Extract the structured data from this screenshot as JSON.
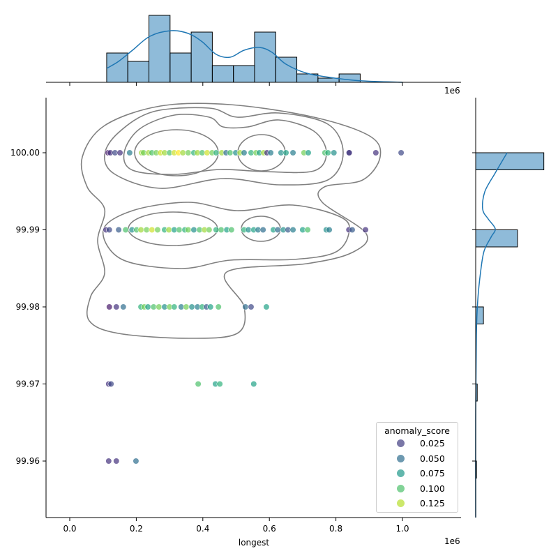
{
  "chart_data": {
    "type": "scatter",
    "xlabel": "longest",
    "ylabel": "",
    "x_offset_label": "1e6",
    "xlim": [
      -0.07,
      1.17
    ],
    "ylim": [
      99.953,
      100.007
    ],
    "x_ticks": [
      "0.0",
      "0.2",
      "0.4",
      "0.6",
      "0.8",
      "1.0"
    ],
    "x_tick_values": [
      0,
      0.2,
      0.4,
      0.6,
      0.8,
      1.0
    ],
    "y_ticks": [
      "99.96",
      "99.97",
      "99.98",
      "99.99",
      "100.00"
    ],
    "y_tick_values": [
      99.96,
      99.97,
      99.98,
      99.99,
      100.0
    ],
    "hue": "anomaly_score",
    "colormap": "viridis",
    "hue_range": [
      0.0,
      0.14
    ],
    "legend": {
      "title": "anomaly_score",
      "placement": "lower-right",
      "entries": [
        "0.025",
        "0.050",
        "0.075",
        "0.100",
        "0.125"
      ],
      "values": [
        0.025,
        0.05,
        0.075,
        0.1,
        0.125
      ]
    },
    "kde_contours": true,
    "points": {
      "100.00": [
        [
          0.115,
          0.01
        ],
        [
          0.122,
          0.02
        ],
        [
          0.136,
          0.03
        ],
        [
          0.151,
          0.02
        ],
        [
          0.18,
          0.06
        ],
        [
          0.216,
          0.12
        ],
        [
          0.222,
          0.11
        ],
        [
          0.237,
          0.12
        ],
        [
          0.247,
          0.1
        ],
        [
          0.26,
          0.11
        ],
        [
          0.273,
          0.13
        ],
        [
          0.285,
          0.12
        ],
        [
          0.3,
          0.1
        ],
        [
          0.314,
          0.13
        ],
        [
          0.327,
          0.14
        ],
        [
          0.34,
          0.12
        ],
        [
          0.356,
          0.11
        ],
        [
          0.373,
          0.09
        ],
        [
          0.384,
          0.12
        ],
        [
          0.398,
          0.1
        ],
        [
          0.413,
          0.13
        ],
        [
          0.428,
          0.11
        ],
        [
          0.44,
          0.09
        ],
        [
          0.457,
          0.12
        ],
        [
          0.47,
          0.05
        ],
        [
          0.482,
          0.1
        ],
        [
          0.499,
          0.07
        ],
        [
          0.512,
          0.12
        ],
        [
          0.524,
          0.06
        ],
        [
          0.545,
          0.09
        ],
        [
          0.56,
          0.11
        ],
        [
          0.57,
          0.08
        ],
        [
          0.583,
          0.12
        ],
        [
          0.593,
          0.02
        ],
        [
          0.604,
          0.06
        ],
        [
          0.635,
          0.07
        ],
        [
          0.65,
          0.08
        ],
        [
          0.671,
          0.06
        ],
        [
          0.704,
          0.11
        ],
        [
          0.717,
          0.08
        ],
        [
          0.767,
          0.1
        ],
        [
          0.776,
          0.09
        ],
        [
          0.794,
          0.07
        ],
        [
          0.839,
          0.03
        ],
        [
          0.84,
          0.02
        ],
        [
          0.92,
          0.02
        ],
        [
          0.996,
          0.03
        ]
      ],
      "99.99": [
        [
          0.109,
          0.02
        ],
        [
          0.119,
          0.03
        ],
        [
          0.147,
          0.04
        ],
        [
          0.168,
          0.1
        ],
        [
          0.187,
          0.07
        ],
        [
          0.201,
          0.1
        ],
        [
          0.214,
          0.12
        ],
        [
          0.231,
          0.11
        ],
        [
          0.247,
          0.13
        ],
        [
          0.264,
          0.11
        ],
        [
          0.285,
          0.09
        ],
        [
          0.298,
          0.12
        ],
        [
          0.314,
          0.08
        ],
        [
          0.329,
          0.1
        ],
        [
          0.346,
          0.09
        ],
        [
          0.356,
          0.11
        ],
        [
          0.373,
          0.07
        ],
        [
          0.39,
          0.1
        ],
        [
          0.405,
          0.12
        ],
        [
          0.419,
          0.11
        ],
        [
          0.44,
          0.09
        ],
        [
          0.455,
          0.1
        ],
        [
          0.472,
          0.08
        ],
        [
          0.486,
          0.1
        ],
        [
          0.524,
          0.09
        ],
        [
          0.537,
          0.07
        ],
        [
          0.553,
          0.08
        ],
        [
          0.566,
          0.06
        ],
        [
          0.581,
          0.05
        ],
        [
          0.612,
          0.08
        ],
        [
          0.625,
          0.05
        ],
        [
          0.642,
          0.07
        ],
        [
          0.656,
          0.04
        ],
        [
          0.671,
          0.06
        ],
        [
          0.7,
          0.08
        ],
        [
          0.715,
          0.1
        ],
        [
          0.771,
          0.07
        ],
        [
          0.78,
          0.06
        ],
        [
          0.839,
          0.02
        ],
        [
          0.849,
          0.04
        ],
        [
          0.889,
          0.02
        ]
      ],
      "99.98": [
        [
          0.119,
          0.01
        ],
        [
          0.14,
          0.02
        ],
        [
          0.161,
          0.05
        ],
        [
          0.214,
          0.09
        ],
        [
          0.224,
          0.11
        ],
        [
          0.235,
          0.08
        ],
        [
          0.252,
          0.1
        ],
        [
          0.268,
          0.11
        ],
        [
          0.285,
          0.07
        ],
        [
          0.3,
          0.11
        ],
        [
          0.314,
          0.09
        ],
        [
          0.335,
          0.06
        ],
        [
          0.35,
          0.11
        ],
        [
          0.367,
          0.07
        ],
        [
          0.384,
          0.06
        ],
        [
          0.398,
          0.09
        ],
        [
          0.411,
          0.04
        ],
        [
          0.423,
          0.08
        ],
        [
          0.447,
          0.1
        ],
        [
          0.528,
          0.05
        ],
        [
          0.545,
          0.03
        ],
        [
          0.591,
          0.08
        ]
      ],
      "99.97": [
        [
          0.117,
          0.02
        ],
        [
          0.124,
          0.03
        ],
        [
          0.386,
          0.1
        ],
        [
          0.438,
          0.08
        ],
        [
          0.451,
          0.09
        ],
        [
          0.553,
          0.08
        ]
      ],
      "99.96": [
        [
          0.117,
          0.02
        ],
        [
          0.14,
          0.02
        ],
        [
          0.199,
          0.05
        ]
      ]
    },
    "x_histogram": {
      "bin_start": 0.111,
      "bin_width": 0.0635,
      "counts": [
        7,
        5,
        16,
        7,
        12,
        4,
        4,
        12,
        6,
        2,
        1,
        2
      ]
    },
    "y_histogram": {
      "bins": [
        100.0,
        99.99,
        99.98,
        99.97,
        99.96
      ],
      "counts": [
        44,
        27,
        5,
        1,
        0.5
      ]
    },
    "bar_color": "#1f77b4",
    "kde_color": "#1f77b4",
    "contour_color": "#808080"
  }
}
